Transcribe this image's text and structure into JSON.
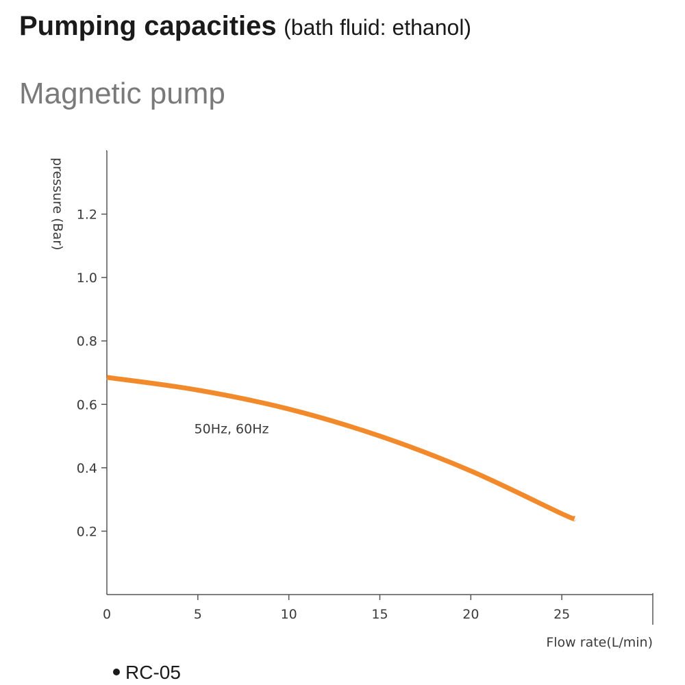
{
  "header": {
    "title": "Pumping capacities",
    "title_note": "(bath fluid: ethanol)",
    "subtitle": "Magnetic pump"
  },
  "legend": {
    "model": "RC-05"
  },
  "colors": {
    "curve": "#f28a2c",
    "axis": "#555555",
    "text": "#1a1a1a"
  },
  "chart_data": {
    "type": "line",
    "title": "Pumping capacities (bath fluid: ethanol)",
    "subtitle": "Magnetic pump",
    "xlabel": "Flow rate(L/min)",
    "ylabel": "pressure (Bar)",
    "xlim": [
      0,
      30
    ],
    "ylim": [
      0,
      1.4
    ],
    "xticks": [
      0,
      5,
      10,
      15,
      20,
      25
    ],
    "yticks": [
      0.2,
      0.4,
      0.6,
      0.8,
      1.0,
      1.2
    ],
    "ytick_labels": [
      "0.2",
      "0.4",
      "0.6",
      "0.8",
      "1.0",
      "1.2"
    ],
    "grid": false,
    "series": [
      {
        "name": "RC-05",
        "label": "50Hz, 60Hz",
        "x": [
          0,
          5,
          10,
          15,
          20,
          25,
          25.7
        ],
        "y": [
          0.685,
          0.645,
          0.585,
          0.5,
          0.39,
          0.255,
          0.24
        ]
      }
    ]
  }
}
